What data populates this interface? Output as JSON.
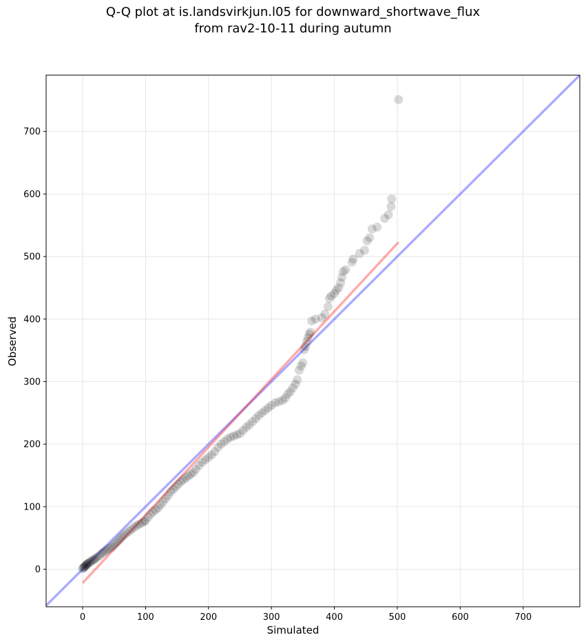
{
  "chart_data": {
    "type": "scatter",
    "title": [
      "Q-Q plot at is.landsvirkjun.l05 for downward_shortwave_flux",
      "from rav2-10-11 during autumn"
    ],
    "xlabel": "Simulated",
    "ylabel": "Observed",
    "xlim": [
      -58,
      790
    ],
    "ylim": [
      -60,
      790
    ],
    "xticks": [
      0,
      100,
      200,
      300,
      400,
      500,
      600,
      700
    ],
    "yticks": [
      0,
      100,
      200,
      300,
      400,
      500,
      600,
      700
    ],
    "grid": true,
    "point_color": "#000000",
    "reference_line": {
      "label": "1:1",
      "color": "#0000ff",
      "from": [
        -58,
        -58
      ],
      "to": [
        790,
        790
      ]
    },
    "fit_line": {
      "color": "#ff0000",
      "from": [
        0,
        -22
      ],
      "to": [
        502,
        523
      ]
    },
    "points": [
      [
        0,
        1
      ],
      [
        1,
        2
      ],
      [
        2,
        3
      ],
      [
        3,
        4
      ],
      [
        4,
        5
      ],
      [
        5,
        6
      ],
      [
        6,
        7
      ],
      [
        7,
        8
      ],
      [
        8,
        9
      ],
      [
        9,
        10
      ],
      [
        11,
        11
      ],
      [
        13,
        12
      ],
      [
        15,
        14
      ],
      [
        17,
        15
      ],
      [
        19,
        16
      ],
      [
        21,
        18
      ],
      [
        24,
        20
      ],
      [
        27,
        22
      ],
      [
        30,
        25
      ],
      [
        33,
        27
      ],
      [
        36,
        29
      ],
      [
        39,
        31
      ],
      [
        42,
        33
      ],
      [
        45,
        35
      ],
      [
        48,
        37
      ],
      [
        51,
        40
      ],
      [
        54,
        43
      ],
      [
        57,
        46
      ],
      [
        60,
        49
      ],
      [
        63,
        52
      ],
      [
        66,
        55
      ],
      [
        70,
        58
      ],
      [
        74,
        61
      ],
      [
        78,
        64
      ],
      [
        82,
        67
      ],
      [
        86,
        70
      ],
      [
        90,
        72
      ],
      [
        94,
        74
      ],
      [
        98,
        76
      ],
      [
        100,
        78
      ],
      [
        104,
        83
      ],
      [
        108,
        88
      ],
      [
        112,
        92
      ],
      [
        116,
        95
      ],
      [
        120,
        98
      ],
      [
        124,
        103
      ],
      [
        128,
        108
      ],
      [
        132,
        113
      ],
      [
        136,
        118
      ],
      [
        140,
        124
      ],
      [
        144,
        128
      ],
      [
        148,
        132
      ],
      [
        152,
        136
      ],
      [
        156,
        140
      ],
      [
        160,
        143
      ],
      [
        164,
        146
      ],
      [
        168,
        149
      ],
      [
        172,
        152
      ],
      [
        176,
        155
      ],
      [
        180,
        160
      ],
      [
        185,
        166
      ],
      [
        190,
        171
      ],
      [
        195,
        175
      ],
      [
        200,
        179
      ],
      [
        205,
        183
      ],
      [
        210,
        188
      ],
      [
        215,
        195
      ],
      [
        220,
        200
      ],
      [
        225,
        204
      ],
      [
        230,
        208
      ],
      [
        235,
        211
      ],
      [
        240,
        213
      ],
      [
        245,
        215
      ],
      [
        250,
        217
      ],
      [
        255,
        222
      ],
      [
        260,
        227
      ],
      [
        265,
        231
      ],
      [
        270,
        236
      ],
      [
        275,
        241
      ],
      [
        280,
        246
      ],
      [
        285,
        250
      ],
      [
        290,
        254
      ],
      [
        295,
        258
      ],
      [
        300,
        262
      ],
      [
        306,
        266
      ],
      [
        312,
        268
      ],
      [
        318,
        270
      ],
      [
        322,
        274
      ],
      [
        326,
        280
      ],
      [
        330,
        284
      ],
      [
        334,
        290
      ],
      [
        338,
        296
      ],
      [
        341,
        303
      ],
      [
        344,
        318
      ],
      [
        347,
        325
      ],
      [
        350,
        330
      ],
      [
        352,
        351
      ],
      [
        354,
        356
      ],
      [
        356,
        364
      ],
      [
        358,
        370
      ],
      [
        360,
        376
      ],
      [
        362,
        379
      ],
      [
        364,
        397
      ],
      [
        370,
        400
      ],
      [
        380,
        402
      ],
      [
        385,
        408
      ],
      [
        390,
        420
      ],
      [
        392,
        433
      ],
      [
        395,
        437
      ],
      [
        400,
        441
      ],
      [
        403,
        446
      ],
      [
        407,
        450
      ],
      [
        410,
        458
      ],
      [
        412,
        467
      ],
      [
        414,
        476
      ],
      [
        418,
        479
      ],
      [
        428,
        491
      ],
      [
        430,
        496
      ],
      [
        440,
        505
      ],
      [
        448,
        510
      ],
      [
        452,
        525
      ],
      [
        456,
        530
      ],
      [
        460,
        544
      ],
      [
        468,
        547
      ],
      [
        480,
        561
      ],
      [
        486,
        567
      ],
      [
        490,
        580
      ],
      [
        491,
        592
      ],
      [
        502,
        751
      ]
    ]
  }
}
